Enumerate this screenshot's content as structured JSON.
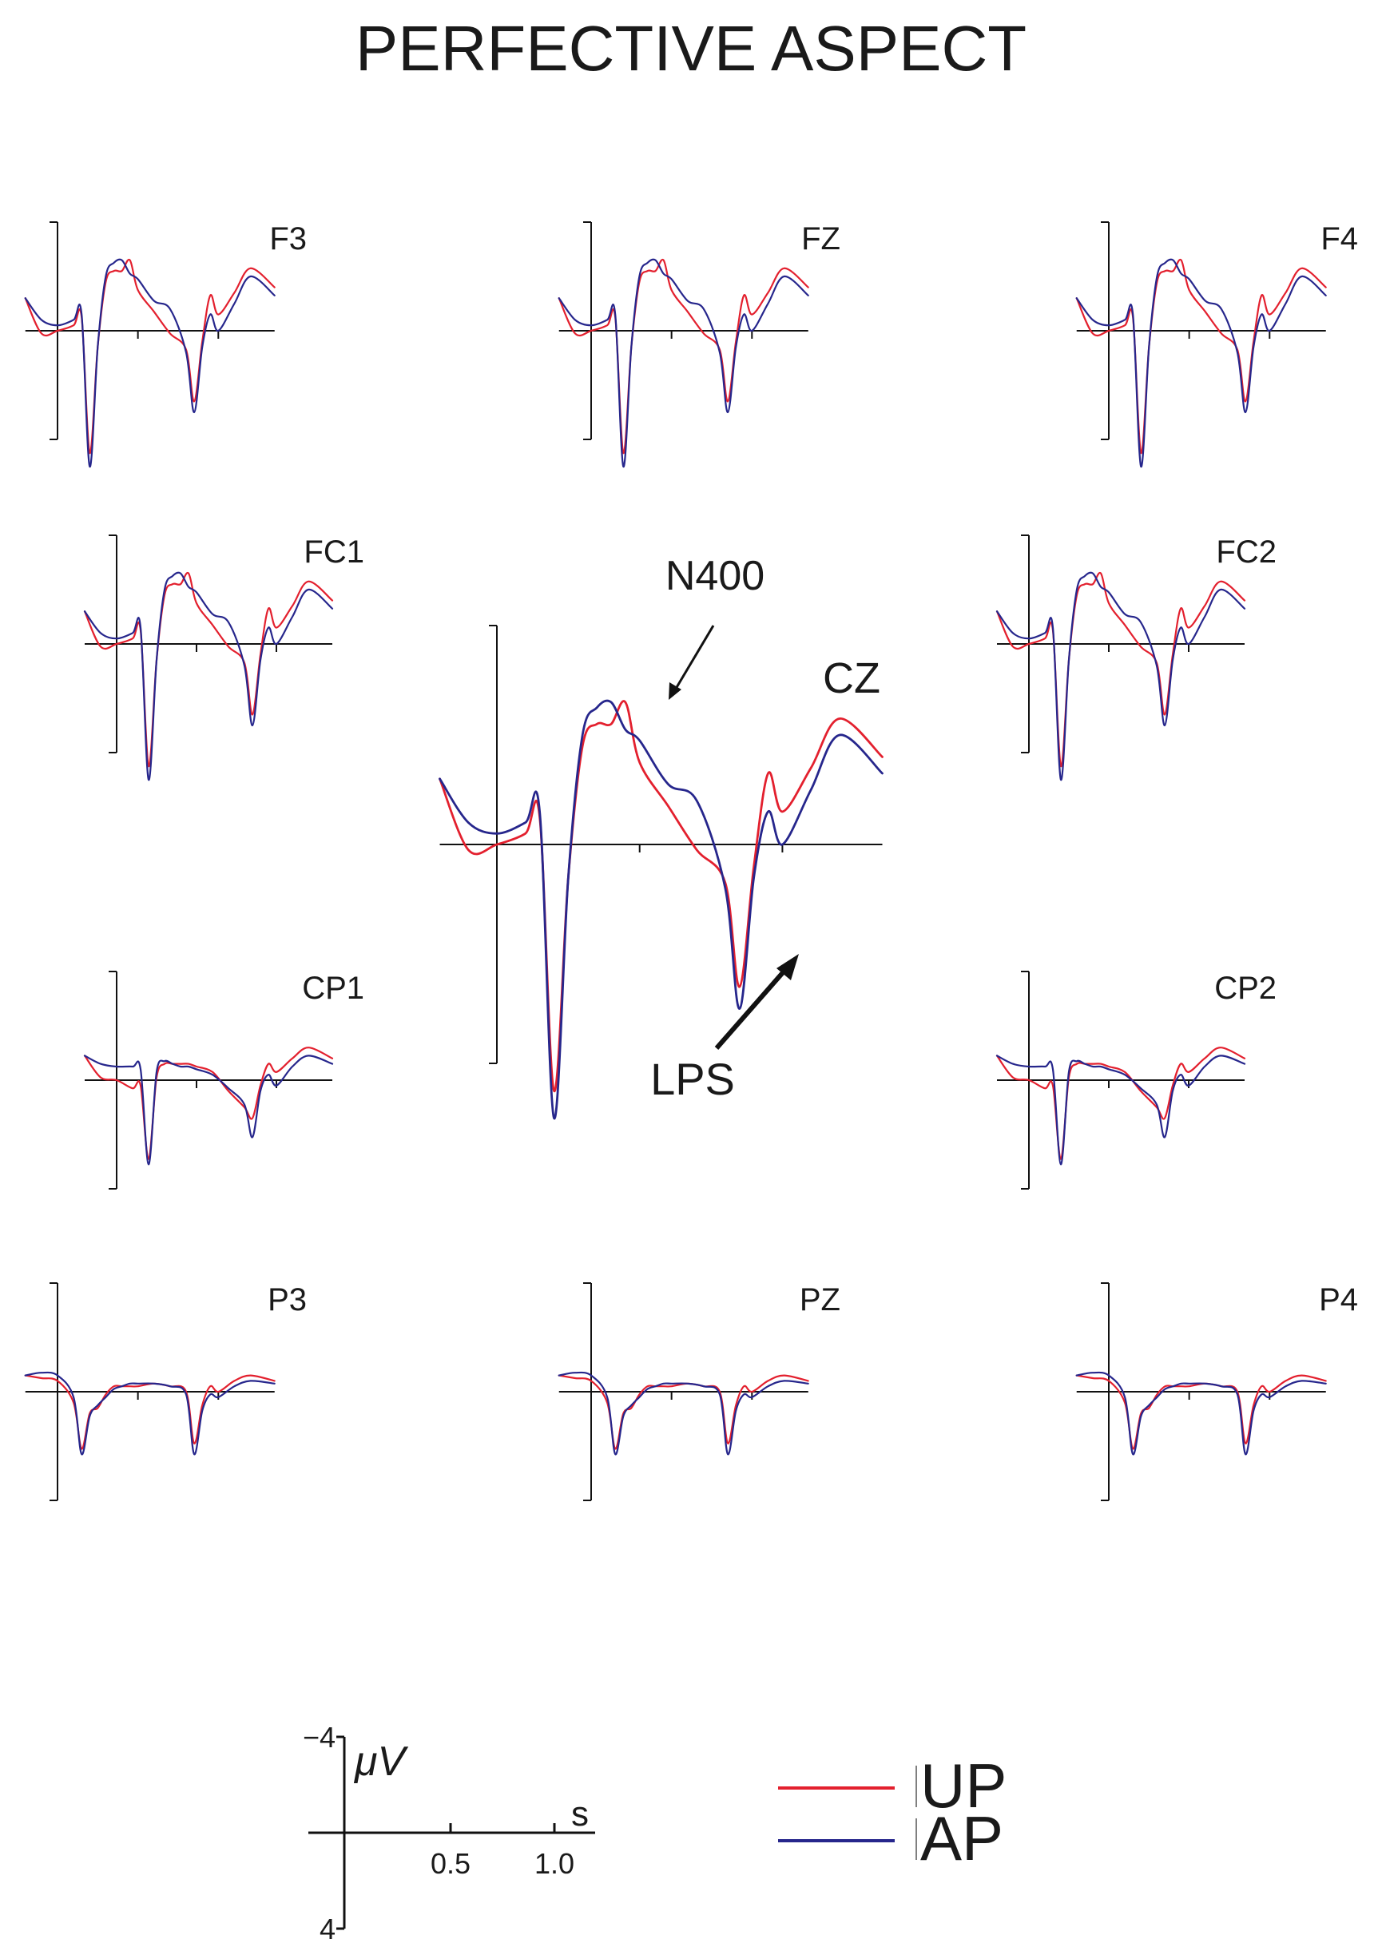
{
  "title": "PERFECTIVE ASPECT",
  "colors": {
    "UP": "#e3202e",
    "AP": "#26268c",
    "axis": "#111111",
    "text": "#1a1a1a"
  },
  "chart_data": {
    "type": "line",
    "title": "PERFECTIVE ASPECT",
    "x_unit": "s",
    "y_unit": "μV",
    "y_axis_inverted": true,
    "xlim": [
      -0.2,
      1.35
    ],
    "ylim": [
      -4,
      4
    ],
    "legend": {
      "placement": "bottom-right",
      "entries": [
        "UP",
        "AP"
      ]
    },
    "scale_bar": {
      "y_top_label": "−4",
      "y_bottom_label": "4",
      "y_unit_label": "μV",
      "x_unit_label": "s",
      "x_tick_labels": [
        "0.5",
        "1.0"
      ]
    },
    "annotations": [
      {
        "text": "N400",
        "panel": "CZ",
        "x": 0.45,
        "y": -3.2
      },
      {
        "text": "LPS",
        "panel": "CZ",
        "x": 0.83,
        "y": 2.4
      }
    ],
    "time": [
      -0.2,
      -0.1,
      0.0,
      0.1,
      0.15,
      0.2,
      0.25,
      0.3,
      0.35,
      0.4,
      0.45,
      0.5,
      0.6,
      0.7,
      0.8,
      0.85,
      0.9,
      0.95,
      1.0,
      1.1,
      1.2,
      1.35
    ],
    "panels": [
      {
        "name": "F3",
        "series": [
          {
            "name": "UP",
            "values": [
              -1.2,
              0.1,
              0.0,
              -0.2,
              -0.5,
              4.5,
              0.6,
              -1.8,
              -2.2,
              -2.2,
              -2.6,
              -1.5,
              -0.7,
              0.1,
              0.7,
              2.6,
              0.4,
              -1.3,
              -0.6,
              -1.4,
              -2.3,
              -1.6
            ]
          },
          {
            "name": "AP",
            "values": [
              -1.2,
              -0.4,
              -0.2,
              -0.4,
              -0.6,
              5.0,
              0.6,
              -2.0,
              -2.5,
              -2.6,
              -2.1,
              -1.9,
              -1.1,
              -0.8,
              0.8,
              3.0,
              0.6,
              -0.6,
              0.0,
              -1.0,
              -2.0,
              -1.3
            ]
          }
        ]
      },
      {
        "name": "FZ",
        "series": [
          {
            "name": "UP",
            "values": [
              -1.2,
              0.1,
              0.0,
              -0.2,
              -0.5,
              4.5,
              0.6,
              -1.8,
              -2.2,
              -2.2,
              -2.6,
              -1.5,
              -0.7,
              0.1,
              0.7,
              2.6,
              0.4,
              -1.3,
              -0.6,
              -1.4,
              -2.3,
              -1.6
            ]
          },
          {
            "name": "AP",
            "values": [
              -1.2,
              -0.4,
              -0.2,
              -0.4,
              -0.6,
              5.0,
              0.6,
              -2.0,
              -2.5,
              -2.6,
              -2.1,
              -1.9,
              -1.1,
              -0.8,
              0.8,
              3.0,
              0.6,
              -0.6,
              0.0,
              -1.0,
              -2.0,
              -1.3
            ]
          }
        ]
      },
      {
        "name": "F4",
        "series": [
          {
            "name": "UP",
            "values": [
              -1.2,
              0.1,
              0.0,
              -0.2,
              -0.5,
              4.5,
              0.6,
              -1.8,
              -2.2,
              -2.2,
              -2.6,
              -1.5,
              -0.7,
              0.1,
              0.7,
              2.6,
              0.4,
              -1.3,
              -0.6,
              -1.4,
              -2.3,
              -1.6
            ]
          },
          {
            "name": "AP",
            "values": [
              -1.2,
              -0.4,
              -0.2,
              -0.4,
              -0.6,
              5.0,
              0.6,
              -2.0,
              -2.5,
              -2.6,
              -2.1,
              -1.9,
              -1.1,
              -0.8,
              0.8,
              3.0,
              0.6,
              -0.6,
              0.0,
              -1.0,
              -2.0,
              -1.3
            ]
          }
        ]
      },
      {
        "name": "FC1",
        "series": [
          {
            "name": "UP",
            "values": [
              -1.2,
              0.1,
              0.0,
              -0.2,
              -0.5,
              4.5,
              0.6,
              -1.8,
              -2.2,
              -2.2,
              -2.6,
              -1.5,
              -0.7,
              0.1,
              0.7,
              2.6,
              0.4,
              -1.3,
              -0.6,
              -1.4,
              -2.3,
              -1.6
            ]
          },
          {
            "name": "AP",
            "values": [
              -1.2,
              -0.4,
              -0.2,
              -0.4,
              -0.6,
              5.0,
              0.6,
              -2.0,
              -2.5,
              -2.6,
              -2.1,
              -1.9,
              -1.1,
              -0.8,
              0.8,
              3.0,
              0.6,
              -0.6,
              0.0,
              -1.0,
              -2.0,
              -1.3
            ]
          }
        ]
      },
      {
        "name": "CZ",
        "series": [
          {
            "name": "UP",
            "values": [
              -1.2,
              0.1,
              0.0,
              -0.2,
              -0.5,
              4.5,
              0.6,
              -1.8,
              -2.2,
              -2.2,
              -2.6,
              -1.5,
              -0.7,
              0.1,
              0.7,
              2.6,
              0.4,
              -1.3,
              -0.6,
              -1.4,
              -2.3,
              -1.6
            ]
          },
          {
            "name": "AP",
            "values": [
              -1.2,
              -0.4,
              -0.2,
              -0.4,
              -0.6,
              5.0,
              0.6,
              -2.0,
              -2.5,
              -2.6,
              -2.1,
              -1.9,
              -1.1,
              -0.8,
              0.8,
              3.0,
              0.6,
              -0.6,
              0.0,
              -1.0,
              -2.0,
              -1.3
            ]
          }
        ]
      },
      {
        "name": "FC2",
        "series": [
          {
            "name": "UP",
            "values": [
              -1.2,
              0.1,
              0.0,
              -0.2,
              -0.5,
              4.5,
              0.6,
              -1.8,
              -2.2,
              -2.2,
              -2.6,
              -1.5,
              -0.7,
              0.1,
              0.7,
              2.6,
              0.4,
              -1.3,
              -0.6,
              -1.4,
              -2.3,
              -1.6
            ]
          },
          {
            "name": "AP",
            "values": [
              -1.2,
              -0.4,
              -0.2,
              -0.4,
              -0.6,
              5.0,
              0.6,
              -2.0,
              -2.5,
              -2.6,
              -2.1,
              -1.9,
              -1.1,
              -0.8,
              0.8,
              3.0,
              0.6,
              -0.6,
              0.0,
              -1.0,
              -2.0,
              -1.3
            ]
          }
        ]
      },
      {
        "name": "CP1",
        "series": [
          {
            "name": "UP",
            "values": [
              -0.9,
              -0.1,
              0.0,
              0.3,
              0.2,
              2.9,
              -0.1,
              -0.6,
              -0.6,
              -0.6,
              -0.6,
              -0.5,
              -0.3,
              0.4,
              1.0,
              1.4,
              0.2,
              -0.6,
              -0.3,
              -0.8,
              -1.2,
              -0.8
            ]
          },
          {
            "name": "AP",
            "values": [
              -0.9,
              -0.6,
              -0.5,
              -0.5,
              -0.4,
              3.1,
              -0.3,
              -0.7,
              -0.6,
              -0.5,
              -0.5,
              -0.4,
              -0.2,
              0.3,
              0.9,
              2.1,
              0.4,
              -0.2,
              0.2,
              -0.5,
              -0.9,
              -0.6
            ]
          }
        ]
      },
      {
        "name": "CP2",
        "series": [
          {
            "name": "UP",
            "values": [
              -0.9,
              -0.1,
              0.0,
              0.3,
              0.2,
              2.9,
              -0.1,
              -0.6,
              -0.6,
              -0.6,
              -0.6,
              -0.5,
              -0.3,
              0.4,
              1.0,
              1.4,
              0.2,
              -0.6,
              -0.3,
              -0.8,
              -1.2,
              -0.8
            ]
          },
          {
            "name": "AP",
            "values": [
              -0.9,
              -0.6,
              -0.5,
              -0.5,
              -0.4,
              3.1,
              -0.3,
              -0.7,
              -0.6,
              -0.5,
              -0.5,
              -0.4,
              -0.2,
              0.3,
              0.9,
              2.1,
              0.4,
              -0.2,
              0.2,
              -0.5,
              -0.9,
              -0.6
            ]
          }
        ]
      },
      {
        "name": "P3",
        "series": [
          {
            "name": "UP",
            "values": [
              -0.6,
              -0.5,
              -0.4,
              0.4,
              2.1,
              0.8,
              0.6,
              0.1,
              -0.2,
              -0.2,
              -0.2,
              -0.2,
              -0.3,
              -0.2,
              0.0,
              1.9,
              0.5,
              -0.2,
              0.0,
              -0.4,
              -0.6,
              -0.4
            ]
          },
          {
            "name": "AP",
            "values": [
              -0.6,
              -0.7,
              -0.6,
              0.2,
              2.3,
              0.9,
              0.5,
              0.2,
              -0.1,
              -0.2,
              -0.3,
              -0.3,
              -0.3,
              -0.2,
              0.1,
              2.3,
              0.7,
              0.1,
              0.2,
              -0.2,
              -0.4,
              -0.3
            ]
          }
        ]
      },
      {
        "name": "PZ",
        "series": [
          {
            "name": "UP",
            "values": [
              -0.6,
              -0.5,
              -0.4,
              0.4,
              2.1,
              0.8,
              0.6,
              0.1,
              -0.2,
              -0.2,
              -0.2,
              -0.2,
              -0.3,
              -0.2,
              0.0,
              1.9,
              0.5,
              -0.2,
              0.0,
              -0.4,
              -0.6,
              -0.4
            ]
          },
          {
            "name": "AP",
            "values": [
              -0.6,
              -0.7,
              -0.6,
              0.2,
              2.3,
              0.9,
              0.5,
              0.2,
              -0.1,
              -0.2,
              -0.3,
              -0.3,
              -0.3,
              -0.2,
              0.1,
              2.3,
              0.7,
              0.1,
              0.2,
              -0.2,
              -0.4,
              -0.3
            ]
          }
        ]
      },
      {
        "name": "P4",
        "series": [
          {
            "name": "UP",
            "values": [
              -0.6,
              -0.5,
              -0.4,
              0.4,
              2.1,
              0.8,
              0.6,
              0.1,
              -0.2,
              -0.2,
              -0.2,
              -0.2,
              -0.3,
              -0.2,
              0.0,
              1.9,
              0.5,
              -0.2,
              0.0,
              -0.4,
              -0.6,
              -0.4
            ]
          },
          {
            "name": "AP",
            "values": [
              -0.6,
              -0.7,
              -0.6,
              0.2,
              2.3,
              0.9,
              0.5,
              0.2,
              -0.1,
              -0.2,
              -0.3,
              -0.3,
              -0.3,
              -0.2,
              0.1,
              2.3,
              0.7,
              0.1,
              0.2,
              -0.2,
              -0.4,
              -0.3
            ]
          }
        ]
      }
    ]
  }
}
